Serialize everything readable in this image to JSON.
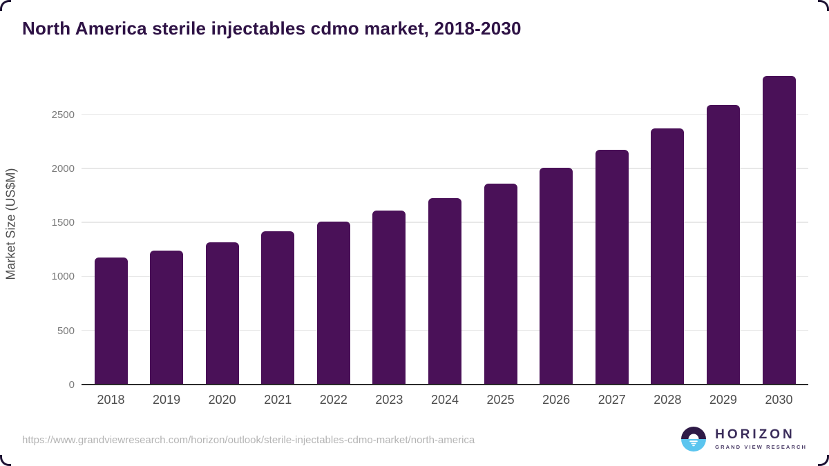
{
  "title": "North America sterile injectables cdmo market, 2018-2030",
  "chart_data": {
    "type": "bar",
    "title": "North America sterile injectables cdmo market, 2018-2030",
    "categories": [
      "2018",
      "2019",
      "2020",
      "2021",
      "2022",
      "2023",
      "2024",
      "2025",
      "2026",
      "2027",
      "2028",
      "2029",
      "2030"
    ],
    "values": [
      1175,
      1240,
      1315,
      1415,
      1505,
      1610,
      1725,
      1860,
      2005,
      2170,
      2370,
      2590,
      2855
    ],
    "xlabel": "",
    "ylabel": "Market Size (US$M)",
    "ylim": [
      0,
      2900
    ],
    "yticks": [
      0,
      500,
      1000,
      1500,
      2000,
      2500
    ],
    "grid": true,
    "legend": false,
    "bar_color": "#4a1158"
  },
  "colors": {
    "title": "#2e1245",
    "bar": "#4a1158",
    "gridline": "#e8e8e8",
    "axis_line": "#2b2b2b",
    "x_tick": "#4d4d4d",
    "y_tick": "#7a7a7a",
    "url_text": "#b4b4b4",
    "logo_dark": "#2e1a47",
    "logo_blue": "#5bc5ef"
  },
  "footer": {
    "source_url": "https://www.grandviewresearch.com/horizon/outlook/sterile-injectables-cdmo-market/north-america",
    "logo": {
      "name": "HORIZON",
      "subtitle": "GRAND VIEW RESEARCH"
    }
  }
}
